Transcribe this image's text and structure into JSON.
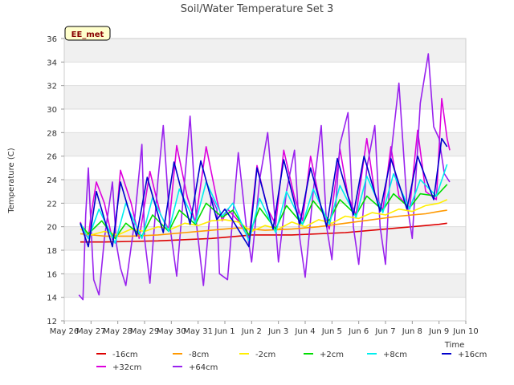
{
  "chart_data": {
    "type": "line",
    "title": "Soil/Water Temperature Set 3",
    "xlabel": "Time",
    "ylabel": "Temperature (C)",
    "badge": "EE_met",
    "ylim": [
      12,
      36
    ],
    "yticks": [
      12,
      14,
      16,
      18,
      20,
      22,
      24,
      26,
      28,
      30,
      32,
      34,
      36
    ],
    "xlim": [
      0,
      15
    ],
    "xticks": [
      {
        "x": 0,
        "label": "May 26"
      },
      {
        "x": 1,
        "label": "May 27"
      },
      {
        "x": 2,
        "label": "May 28"
      },
      {
        "x": 3,
        "label": "May 29"
      },
      {
        "x": 4,
        "label": "May 30"
      },
      {
        "x": 5,
        "label": "May 31"
      },
      {
        "x": 6,
        "label": "Jun 1"
      },
      {
        "x": 7,
        "label": "Jun 2"
      },
      {
        "x": 8,
        "label": "Jun 3"
      },
      {
        "x": 9,
        "label": "Jun 4"
      },
      {
        "x": 10,
        "label": "Jun 5"
      },
      {
        "x": 11,
        "label": "Jun 6"
      },
      {
        "x": 12,
        "label": "Jun 7"
      },
      {
        "x": 13,
        "label": "Jun 8"
      },
      {
        "x": 14,
        "label": "Jun 9"
      },
      {
        "x": 15,
        "label": "Jun 10"
      }
    ],
    "grid": true,
    "legend_position": "bottom",
    "series": [
      {
        "name": "-16cm",
        "color": "#dd0000",
        "x": [
          0.6,
          1.5,
          2.5,
          3.5,
          4.5,
          5.5,
          6.5,
          7.0,
          7.5,
          8.5,
          9.5,
          10.5,
          11.5,
          12.5,
          13.5,
          14.0,
          14.3
        ],
        "y": [
          18.7,
          18.7,
          18.75,
          18.8,
          18.9,
          19.0,
          19.2,
          19.3,
          19.3,
          19.3,
          19.4,
          19.5,
          19.7,
          19.9,
          20.1,
          20.2,
          20.3
        ]
      },
      {
        "name": "+32cm",
        "color": "#dd00dd",
        "x": [
          0.6,
          0.75,
          0.9,
          1.0,
          1.2,
          1.5,
          1.8,
          1.9,
          2.1,
          2.5,
          2.8,
          3.2,
          3.6,
          3.9,
          4.2,
          4.6,
          4.9,
          5.3,
          5.7,
          5.9,
          6.1,
          6.5,
          6.9,
          7.2,
          7.6,
          7.9,
          8.2,
          8.6,
          8.9,
          9.2,
          9.6,
          9.9,
          10.3,
          10.6,
          10.9,
          11.3,
          11.6,
          11.9,
          12.2,
          12.5,
          12.9,
          13.2,
          13.5,
          13.9,
          14.1,
          14.3,
          14.4
        ],
        "y": [
          20.4,
          19.5,
          19.0,
          21.0,
          23.8,
          22.0,
          18.9,
          19.5,
          24.8,
          22.0,
          19.0,
          24.7,
          21.0,
          19.8,
          26.9,
          22.5,
          20.4,
          26.8,
          22.3,
          20.5,
          21.5,
          20.5,
          19.0,
          25.2,
          21.5,
          20.2,
          26.5,
          22.5,
          20.5,
          26.0,
          21.5,
          19.8,
          26.6,
          22.6,
          21.0,
          27.5,
          22.8,
          21.4,
          26.8,
          22.6,
          21.5,
          28.2,
          23.0,
          22.3,
          30.9,
          27.5,
          26.5
        ]
      },
      {
        "name": "+64cm",
        "color": "#9922ee",
        "x": [
          0.55,
          0.7,
          0.8,
          0.9,
          1.0,
          1.1,
          1.3,
          1.5,
          1.8,
          1.95,
          2.1,
          2.3,
          2.6,
          2.9,
          3.0,
          3.2,
          3.5,
          3.7,
          3.95,
          4.2,
          4.5,
          4.7,
          4.95,
          5.2,
          5.5,
          5.7,
          5.8,
          6.1,
          6.3,
          6.5,
          6.8,
          7.0,
          7.3,
          7.6,
          7.9,
          8.0,
          8.3,
          8.6,
          8.8,
          9.0,
          9.3,
          9.6,
          9.8,
          10.0,
          10.3,
          10.6,
          10.8,
          11.0,
          11.3,
          11.6,
          11.8,
          12.0,
          12.2,
          12.5,
          12.8,
          13.0,
          13.3,
          13.6,
          13.8,
          14.0,
          14.2,
          14.4
        ],
        "y": [
          14.2,
          13.8,
          21.0,
          25.0,
          20.0,
          15.5,
          14.2,
          19.0,
          23.8,
          18.5,
          16.5,
          15.0,
          20.0,
          27.0,
          19.0,
          15.2,
          24.0,
          28.6,
          20.0,
          15.8,
          24.0,
          29.4,
          20.0,
          15.0,
          22.5,
          21.5,
          16.0,
          15.5,
          21.0,
          26.3,
          20.0,
          17.0,
          24.0,
          28.0,
          20.0,
          17.0,
          23.0,
          26.5,
          19.0,
          15.7,
          23.0,
          28.6,
          20.0,
          17.2,
          27.0,
          29.7,
          20.0,
          16.8,
          25.0,
          28.6,
          20.0,
          16.8,
          26.0,
          32.2,
          22.0,
          19.0,
          30.5,
          34.7,
          28.5,
          27.5,
          24.5,
          23.8
        ]
      },
      {
        "name": "-8cm",
        "color": "#ff9900",
        "x": [
          0.6,
          1.5,
          2.5,
          3.5,
          4.5,
          5.5,
          6.0,
          6.5,
          7.0,
          7.5,
          8.5,
          9.5,
          10.5,
          11.5,
          12.5,
          13.5,
          14.0,
          14.3
        ],
        "y": [
          19.4,
          19.2,
          19.2,
          19.3,
          19.5,
          19.7,
          19.8,
          19.9,
          19.8,
          19.7,
          19.8,
          20.0,
          20.3,
          20.6,
          20.9,
          21.1,
          21.3,
          21.4
        ]
      },
      {
        "name": "-2cm",
        "color": "#ffee00",
        "x": [
          0.6,
          1.0,
          1.5,
          2.0,
          2.5,
          3.0,
          3.5,
          4.0,
          4.5,
          5.0,
          5.5,
          6.0,
          6.5,
          7.0,
          7.5,
          8.0,
          8.5,
          9.0,
          9.5,
          10.0,
          10.5,
          11.0,
          11.5,
          12.0,
          12.5,
          13.0,
          13.5,
          14.0,
          14.3
        ],
        "y": [
          19.8,
          19.3,
          19.6,
          19.3,
          19.8,
          19.6,
          20.0,
          19.8,
          20.3,
          20.1,
          20.5,
          20.6,
          20.4,
          19.6,
          20.1,
          19.8,
          20.4,
          20.0,
          20.6,
          20.3,
          20.9,
          20.7,
          21.2,
          21.0,
          21.5,
          21.3,
          21.8,
          22.0,
          22.3
        ]
      },
      {
        "name": "+2cm",
        "color": "#00dd00",
        "x": [
          0.6,
          0.9,
          1.4,
          1.9,
          2.3,
          2.9,
          3.3,
          3.9,
          4.3,
          4.9,
          5.3,
          5.9,
          6.3,
          6.9,
          7.3,
          7.9,
          8.3,
          8.9,
          9.3,
          9.9,
          10.3,
          10.9,
          11.3,
          11.9,
          12.3,
          12.9,
          13.3,
          13.9,
          14.3
        ],
        "y": [
          20.2,
          19.4,
          20.5,
          19.0,
          20.3,
          19.2,
          21.0,
          19.6,
          21.4,
          20.2,
          22.0,
          20.8,
          21.4,
          19.3,
          21.6,
          19.8,
          21.8,
          20.2,
          22.2,
          20.5,
          22.3,
          21.0,
          22.6,
          21.4,
          22.8,
          21.6,
          22.8,
          22.6,
          23.6
        ]
      },
      {
        "name": "+8cm",
        "color": "#00eeee",
        "x": [
          0.6,
          0.9,
          1.3,
          1.9,
          2.3,
          2.9,
          3.3,
          3.9,
          4.3,
          4.9,
          5.3,
          5.9,
          6.3,
          6.9,
          7.3,
          7.9,
          8.3,
          8.9,
          9.3,
          9.9,
          10.3,
          10.9,
          11.3,
          11.9,
          12.3,
          12.9,
          13.3,
          13.9,
          14.3
        ],
        "y": [
          20.3,
          19.0,
          21.5,
          18.6,
          22.0,
          19.0,
          22.5,
          19.6,
          23.2,
          20.3,
          23.8,
          20.9,
          22.0,
          18.8,
          22.4,
          19.5,
          23.0,
          20.2,
          23.2,
          20.2,
          23.5,
          20.8,
          24.3,
          21.2,
          24.5,
          21.5,
          24.0,
          22.6,
          25.3
        ]
      },
      {
        "name": "+16cm",
        "color": "#0000cc",
        "x": [
          0.6,
          0.9,
          1.2,
          1.8,
          2.1,
          2.7,
          3.1,
          3.7,
          4.1,
          4.7,
          5.1,
          5.7,
          6.0,
          6.3,
          6.9,
          7.2,
          7.8,
          8.2,
          8.8,
          9.2,
          9.8,
          10.2,
          10.8,
          11.2,
          11.8,
          12.2,
          12.8,
          13.2,
          13.8,
          14.1,
          14.3
        ],
        "y": [
          20.3,
          18.3,
          23.0,
          18.3,
          23.8,
          19.2,
          24.2,
          19.5,
          25.5,
          20.2,
          25.6,
          20.6,
          21.5,
          20.5,
          18.3,
          25.0,
          19.8,
          25.7,
          20.2,
          25.0,
          20.0,
          25.8,
          21.0,
          26.0,
          21.3,
          25.8,
          21.5,
          26.0,
          22.3,
          27.5,
          26.8
        ]
      }
    ]
  }
}
